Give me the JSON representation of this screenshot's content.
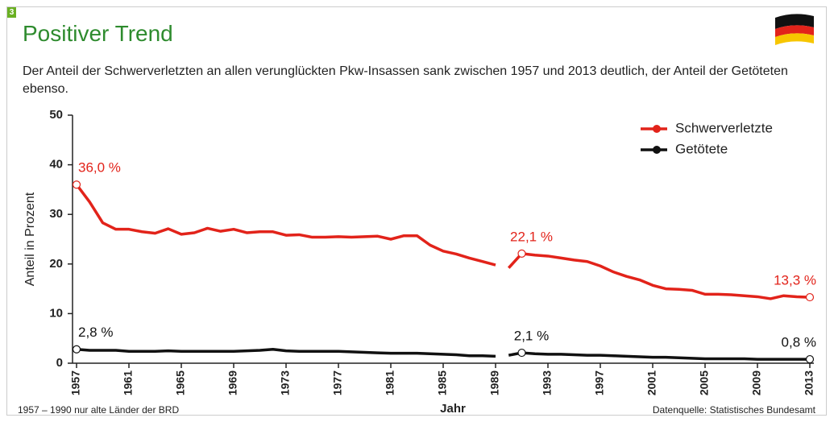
{
  "badge": "3",
  "chart_data": {
    "type": "line",
    "title": "Positiver Trend",
    "subtitle": "Der Anteil der Schwerverletzten an allen verunglückten Pkw-Insassen sank zwischen 1957 und 2013 deutlich, der Anteil der Getöteten ebenso.",
    "ylabel": "Anteil in Prozent",
    "xlabel": "Jahr",
    "footnote": "1957 – 1990 nur alte Länder der BRD",
    "source": "Datenquelle: Statistisches Bundesamt",
    "xlim": [
      1957,
      2013
    ],
    "xticks": [
      1957,
      1961,
      1965,
      1969,
      1973,
      1977,
      1981,
      1985,
      1989,
      1993,
      1997,
      2001,
      2005,
      2009,
      2013
    ],
    "ylim": [
      0,
      50
    ],
    "yticks": [
      0,
      10,
      20,
      30,
      40,
      50
    ],
    "legend": "upper right",
    "series": [
      {
        "name": "Schwerverletzte",
        "color": "#e2231a",
        "segments": [
          {
            "x": [
              1957,
              1958,
              1959,
              1960,
              1961,
              1962,
              1963,
              1964,
              1965,
              1966,
              1967,
              1968,
              1969,
              1970,
              1971,
              1972,
              1973,
              1974,
              1975,
              1976,
              1977,
              1978,
              1979,
              1980,
              1981,
              1982,
              1983,
              1984,
              1985,
              1986,
              1987,
              1988,
              1989
            ],
            "values": [
              36.0,
              32.5,
              28.3,
              27.0,
              27.0,
              26.5,
              26.2,
              27.1,
              26.0,
              26.3,
              27.2,
              26.6,
              27.0,
              26.3,
              26.5,
              26.5,
              25.8,
              25.9,
              25.4,
              25.4,
              25.5,
              25.4,
              25.5,
              25.6,
              25.0,
              25.7,
              25.7,
              23.8,
              22.6,
              22.0,
              21.2,
              20.5,
              19.8
            ],
            "value_labels": [
              "36,0 %",
              null,
              null,
              null,
              null,
              null,
              null,
              null,
              null,
              null,
              null,
              null,
              null,
              null,
              null,
              null,
              null,
              null,
              null,
              null,
              null,
              null,
              null,
              null,
              null,
              null,
              null,
              null,
              null,
              null,
              null,
              null,
              null
            ]
          },
          {
            "x": [
              1990,
              1991,
              1992,
              1993,
              1994,
              1995,
              1996,
              1997,
              1998,
              1999,
              2000,
              2001,
              2002,
              2003,
              2004,
              2005,
              2006,
              2007,
              2008,
              2009,
              2010,
              2011,
              2012,
              2013
            ],
            "values": [
              19.2,
              22.1,
              21.8,
              21.6,
              21.2,
              20.8,
              20.5,
              19.6,
              18.4,
              17.5,
              16.8,
              15.7,
              15.0,
              14.9,
              14.7,
              13.9,
              13.9,
              13.8,
              13.6,
              13.4,
              13.0,
              13.6,
              13.4,
              13.3
            ],
            "value_labels": [
              null,
              "22,1 %",
              null,
              null,
              null,
              null,
              null,
              null,
              null,
              null,
              null,
              null,
              null,
              null,
              null,
              null,
              null,
              null,
              null,
              null,
              null,
              null,
              null,
              "13,3 %"
            ]
          }
        ]
      },
      {
        "name": "Getötete",
        "color": "#111111",
        "segments": [
          {
            "x": [
              1957,
              1958,
              1959,
              1960,
              1961,
              1962,
              1963,
              1964,
              1965,
              1966,
              1967,
              1968,
              1969,
              1970,
              1971,
              1972,
              1973,
              1974,
              1975,
              1976,
              1977,
              1978,
              1979,
              1980,
              1981,
              1982,
              1983,
              1984,
              1985,
              1986,
              1987,
              1988,
              1989
            ],
            "values": [
              2.8,
              2.6,
              2.6,
              2.6,
              2.4,
              2.4,
              2.4,
              2.5,
              2.4,
              2.4,
              2.4,
              2.4,
              2.4,
              2.5,
              2.6,
              2.8,
              2.5,
              2.4,
              2.4,
              2.4,
              2.4,
              2.3,
              2.2,
              2.1,
              2.0,
              2.0,
              2.0,
              1.9,
              1.8,
              1.7,
              1.5,
              1.5,
              1.4
            ],
            "value_labels": [
              "2,8 %",
              null,
              null,
              null,
              null,
              null,
              null,
              null,
              null,
              null,
              null,
              null,
              null,
              null,
              null,
              null,
              null,
              null,
              null,
              null,
              null,
              null,
              null,
              null,
              null,
              null,
              null,
              null,
              null,
              null,
              null,
              null,
              null
            ]
          },
          {
            "x": [
              1990,
              1991,
              1992,
              1993,
              1994,
              1995,
              1996,
              1997,
              1998,
              1999,
              2000,
              2001,
              2002,
              2003,
              2004,
              2005,
              2006,
              2007,
              2008,
              2009,
              2010,
              2011,
              2012,
              2013
            ],
            "values": [
              1.6,
              2.1,
              1.9,
              1.8,
              1.8,
              1.7,
              1.6,
              1.6,
              1.5,
              1.4,
              1.3,
              1.2,
              1.2,
              1.1,
              1.0,
              0.9,
              0.9,
              0.9,
              0.9,
              0.8,
              0.8,
              0.8,
              0.8,
              0.8
            ],
            "value_labels": [
              null,
              "2,1 %",
              null,
              null,
              null,
              null,
              null,
              null,
              null,
              null,
              null,
              null,
              null,
              null,
              null,
              null,
              null,
              null,
              null,
              null,
              null,
              null,
              null,
              "0,8 %"
            ]
          }
        ]
      }
    ]
  }
}
